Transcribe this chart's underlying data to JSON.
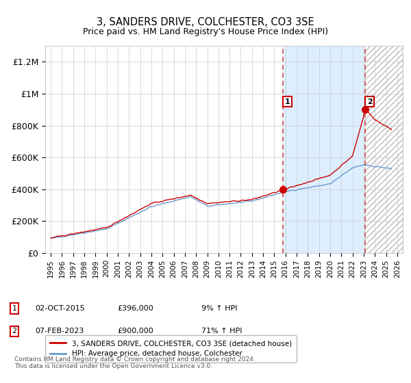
{
  "title": "3, SANDERS DRIVE, COLCHESTER, CO3 3SE",
  "subtitle": "Price paid vs. HM Land Registry's House Price Index (HPI)",
  "legend_line1": "3, SANDERS DRIVE, COLCHESTER, CO3 3SE (detached house)",
  "legend_line2": "HPI: Average price, detached house, Colchester",
  "annotation1": {
    "label": "1",
    "date_str": "02-OCT-2015",
    "price_str": "£396,000",
    "pct_str": "9% ↑ HPI"
  },
  "annotation2": {
    "label": "2",
    "date_str": "07-FEB-2023",
    "price_str": "£900,000",
    "pct_str": "71% ↑ HPI"
  },
  "footer": "Contains HM Land Registry data © Crown copyright and database right 2024.\nThis data is licensed under the Open Government Licence v3.0.",
  "red_color": "#cc0000",
  "blue_color": "#6699cc",
  "vline_color": "#dd4444",
  "fill_color": "#ddeeff",
  "ylim": [
    0,
    1300000
  ],
  "yticks": [
    0,
    200000,
    400000,
    600000,
    800000,
    1000000,
    1200000
  ],
  "ytick_labels": [
    "£0",
    "£200K",
    "£400K",
    "£600K",
    "£800K",
    "£1M",
    "£1.2M"
  ],
  "marker1_x": 2015.75,
  "marker1_y": 396000,
  "marker2_x": 2023.1,
  "marker2_y": 900000,
  "vline1_x": 2015.75,
  "vline2_x": 2023.1,
  "xmin": 1995,
  "xmax": 2026
}
